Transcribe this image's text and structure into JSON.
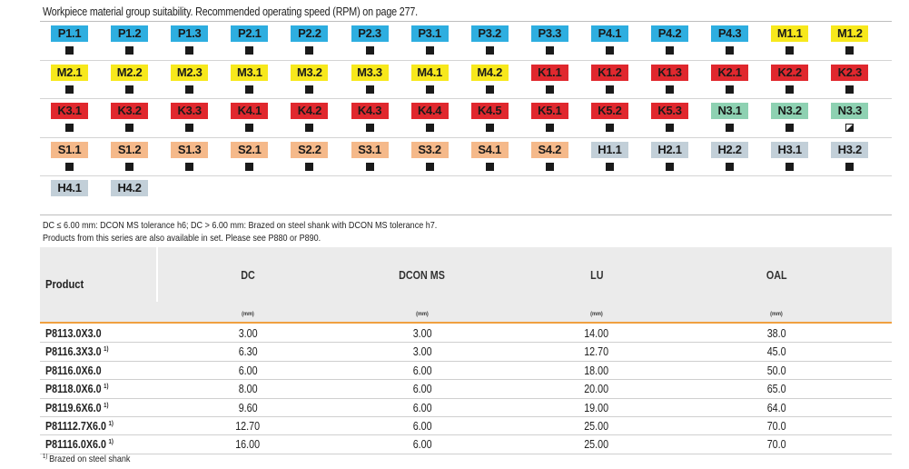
{
  "title": "Workpiece material group suitability. Recommended operating speed (RPM) on page 277.",
  "colors": {
    "P": "#2eaee0",
    "M": "#f7e81c",
    "K": "#e0282e",
    "N": "#8ed1b2",
    "S": "#f5b98a",
    "H": "#c2cfd8",
    "header_bg": "#ebebeb",
    "accent_rule": "#f0a040"
  },
  "material_rows": [
    [
      {
        "label": "P1.1",
        "group": "P",
        "mark": "full"
      },
      {
        "label": "P1.2",
        "group": "P",
        "mark": "full"
      },
      {
        "label": "P1.3",
        "group": "P",
        "mark": "full"
      },
      {
        "label": "P2.1",
        "group": "P",
        "mark": "full"
      },
      {
        "label": "P2.2",
        "group": "P",
        "mark": "full"
      },
      {
        "label": "P2.3",
        "group": "P",
        "mark": "full"
      },
      {
        "label": "P3.1",
        "group": "P",
        "mark": "full"
      },
      {
        "label": "P3.2",
        "group": "P",
        "mark": "full"
      },
      {
        "label": "P3.3",
        "group": "P",
        "mark": "full"
      },
      {
        "label": "P4.1",
        "group": "P",
        "mark": "full"
      },
      {
        "label": "P4.2",
        "group": "P",
        "mark": "full"
      },
      {
        "label": "P4.3",
        "group": "P",
        "mark": "full"
      },
      {
        "label": "M1.1",
        "group": "M",
        "mark": "full"
      },
      {
        "label": "M1.2",
        "group": "M",
        "mark": "full"
      }
    ],
    [
      {
        "label": "M2.1",
        "group": "M",
        "mark": "full"
      },
      {
        "label": "M2.2",
        "group": "M",
        "mark": "full"
      },
      {
        "label": "M2.3",
        "group": "M",
        "mark": "full"
      },
      {
        "label": "M3.1",
        "group": "M",
        "mark": "full"
      },
      {
        "label": "M3.2",
        "group": "M",
        "mark": "full"
      },
      {
        "label": "M3.3",
        "group": "M",
        "mark": "full"
      },
      {
        "label": "M4.1",
        "group": "M",
        "mark": "full"
      },
      {
        "label": "M4.2",
        "group": "M",
        "mark": "full"
      },
      {
        "label": "K1.1",
        "group": "K",
        "mark": "full"
      },
      {
        "label": "K1.2",
        "group": "K",
        "mark": "full"
      },
      {
        "label": "K1.3",
        "group": "K",
        "mark": "full"
      },
      {
        "label": "K2.1",
        "group": "K",
        "mark": "full"
      },
      {
        "label": "K2.2",
        "group": "K",
        "mark": "full"
      },
      {
        "label": "K2.3",
        "group": "K",
        "mark": "full"
      }
    ],
    [
      {
        "label": "K3.1",
        "group": "K",
        "mark": "full"
      },
      {
        "label": "K3.2",
        "group": "K",
        "mark": "full"
      },
      {
        "label": "K3.3",
        "group": "K",
        "mark": "full"
      },
      {
        "label": "K4.1",
        "group": "K",
        "mark": "full"
      },
      {
        "label": "K4.2",
        "group": "K",
        "mark": "full"
      },
      {
        "label": "K4.3",
        "group": "K",
        "mark": "full"
      },
      {
        "label": "K4.4",
        "group": "K",
        "mark": "full"
      },
      {
        "label": "K4.5",
        "group": "K",
        "mark": "full"
      },
      {
        "label": "K5.1",
        "group": "K",
        "mark": "full"
      },
      {
        "label": "K5.2",
        "group": "K",
        "mark": "full"
      },
      {
        "label": "K5.3",
        "group": "K",
        "mark": "full"
      },
      {
        "label": "N3.1",
        "group": "N",
        "mark": "full"
      },
      {
        "label": "N3.2",
        "group": "N",
        "mark": "full"
      },
      {
        "label": "N3.3",
        "group": "N",
        "mark": "half"
      }
    ],
    [
      {
        "label": "S1.1",
        "group": "S",
        "mark": "full"
      },
      {
        "label": "S1.2",
        "group": "S",
        "mark": "full"
      },
      {
        "label": "S1.3",
        "group": "S",
        "mark": "full"
      },
      {
        "label": "S2.1",
        "group": "S",
        "mark": "full"
      },
      {
        "label": "S2.2",
        "group": "S",
        "mark": "full"
      },
      {
        "label": "S3.1",
        "group": "S",
        "mark": "full"
      },
      {
        "label": "S3.2",
        "group": "S",
        "mark": "full"
      },
      {
        "label": "S4.1",
        "group": "S",
        "mark": "full"
      },
      {
        "label": "S4.2",
        "group": "S",
        "mark": "full"
      },
      {
        "label": "H1.1",
        "group": "H",
        "mark": "full"
      },
      {
        "label": "H2.1",
        "group": "H",
        "mark": "full"
      },
      {
        "label": "H2.2",
        "group": "H",
        "mark": "full"
      },
      {
        "label": "H3.1",
        "group": "H",
        "mark": "full"
      },
      {
        "label": "H3.2",
        "group": "H",
        "mark": "full"
      }
    ],
    [
      {
        "label": "H4.1",
        "group": "H",
        "mark": "none"
      },
      {
        "label": "H4.2",
        "group": "H",
        "mark": "none"
      }
    ]
  ],
  "notes": {
    "tolerance": "DC ≤ 6.00 mm: DCON MS tolerance h6; DC > 6.00 mm: Brazed on steel shank with DCON MS tolerance h7.",
    "sets": "Products from this series are also available in set. Please see P880 or P890."
  },
  "table": {
    "product_header": "Product",
    "columns": [
      {
        "label": "DC",
        "unit": "(mm)"
      },
      {
        "label": "DCON MS",
        "unit": "(mm)"
      },
      {
        "label": "LU",
        "unit": "(mm)"
      },
      {
        "label": "OAL",
        "unit": "(mm)"
      }
    ],
    "rows": [
      {
        "product": "P8113.0X3.0",
        "sup": "",
        "values": [
          "3.00",
          "3.00",
          "14.00",
          "38.0"
        ]
      },
      {
        "product": "P8116.3X3.0",
        "sup": "1)",
        "values": [
          "6.30",
          "3.00",
          "12.70",
          "45.0"
        ]
      },
      {
        "product": "P8116.0X6.0",
        "sup": "",
        "values": [
          "6.00",
          "6.00",
          "18.00",
          "50.0"
        ]
      },
      {
        "product": "P8118.0X6.0",
        "sup": "1)",
        "values": [
          "8.00",
          "6.00",
          "20.00",
          "65.0"
        ]
      },
      {
        "product": "P8119.6X6.0",
        "sup": "1)",
        "values": [
          "9.60",
          "6.00",
          "19.00",
          "64.0"
        ]
      },
      {
        "product": "P81112.7X6.0",
        "sup": "1)",
        "values": [
          "12.70",
          "6.00",
          "25.00",
          "70.0"
        ]
      },
      {
        "product": "P81116.0X6.0",
        "sup": "1)",
        "values": [
          "16.00",
          "6.00",
          "25.00",
          "70.0"
        ]
      }
    ]
  },
  "footnote": {
    "marker": "1)",
    "text": "Brazed on steel shank"
  }
}
